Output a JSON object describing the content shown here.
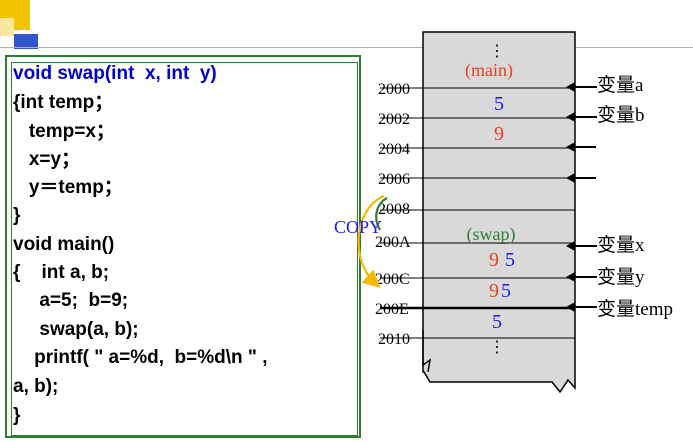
{
  "code": {
    "lines": [
      "void swap(int  x, int  y)",
      "{int temp；",
      "   temp=x；",
      "   x=y；",
      "   y＝temp；",
      "}",
      "void main()",
      "{    int a, b;",
      "     a=5;  b=9;",
      "     swap(a, b);",
      "    printf( \" a=%d,  b=%d\\n \" ,",
      "a, b);",
      "}"
    ]
  },
  "memory": {
    "addresses": [
      "2000",
      "2002",
      "2004",
      "2006",
      "2008",
      "200A",
      "200C",
      "200E",
      "2010"
    ],
    "dots": "⋮",
    "main_label": "(main)",
    "swap_label": "(swap)",
    "cells": [
      {
        "old": "",
        "new": "5"
      },
      {
        "old": "",
        "new": "9"
      },
      {
        "old": "9",
        "new": "5"
      },
      {
        "old": "9",
        "new": "5"
      },
      {
        "old": "",
        "new": "5"
      }
    ],
    "var_labels": [
      "变量a",
      "变量b",
      "变量x",
      "变量y",
      "变量temp"
    ]
  },
  "copy_label": "COPY",
  "colors": {
    "code_blue": "#0000cc",
    "border_green": "#2e7d32",
    "red": "#e8401c",
    "blue": "#1a1aee",
    "swap_green": "#2e7d32",
    "memory_fill": "#d9d9d9",
    "deco_yellow": "#f5c400",
    "deco_blue": "#3355cc"
  }
}
